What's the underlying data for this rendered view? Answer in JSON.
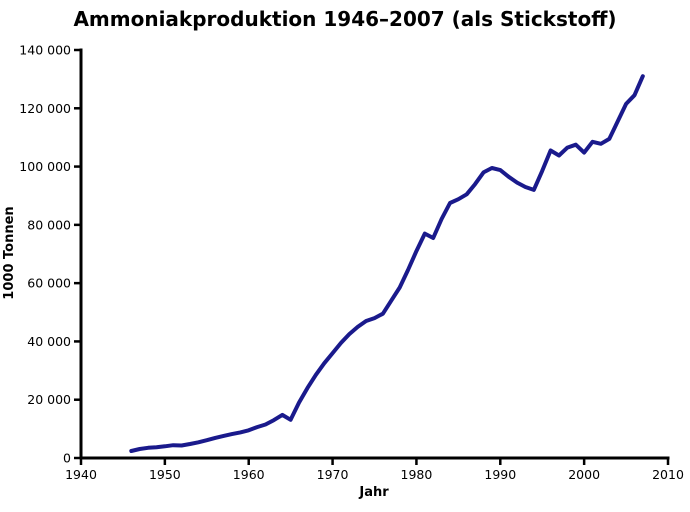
{
  "title": "Ammoniakproduktion 1946–2007 (als Stickstoff)",
  "colors": {
    "line": "#1a1a8c",
    "axis": "#000000",
    "text": "#000000",
    "background": "#ffffff"
  },
  "chart_data": {
    "type": "line",
    "title": "Ammoniakproduktion 1946–2007 (als Stickstoff)",
    "xlabel": "Jahr",
    "ylabel": "1000 Tonnen",
    "xlim": [
      1940,
      2010
    ],
    "ylim": [
      0,
      140000
    ],
    "grid": false,
    "legend": false,
    "x_ticks": [
      1940,
      1950,
      1960,
      1970,
      1980,
      1990,
      2000,
      2010
    ],
    "x_tick_labels": [
      "1940",
      "1950",
      "1960",
      "1970",
      "1980",
      "1990",
      "2000",
      "2010"
    ],
    "y_ticks": [
      0,
      20000,
      40000,
      60000,
      80000,
      100000,
      120000,
      140000
    ],
    "y_tick_labels": [
      "0",
      "20 000",
      "40 000",
      "60 000",
      "80 000",
      "100 000",
      "120 000",
      "140 000"
    ],
    "series": [
      {
        "name": "Ammoniakproduktion 1946–2007 (als Stickstoff)",
        "x": [
          1946,
          1947,
          1948,
          1949,
          1950,
          1951,
          1952,
          1953,
          1954,
          1955,
          1956,
          1957,
          1958,
          1959,
          1960,
          1961,
          1962,
          1963,
          1964,
          1965,
          1966,
          1967,
          1968,
          1969,
          1970,
          1971,
          1972,
          1973,
          1974,
          1975,
          1976,
          1977,
          1978,
          1979,
          1980,
          1981,
          1982,
          1983,
          1984,
          1985,
          1986,
          1987,
          1988,
          1989,
          1990,
          1991,
          1992,
          1993,
          1994,
          1995,
          1996,
          1997,
          1998,
          1999,
          2000,
          2001,
          2002,
          2003,
          2004,
          2005,
          2006,
          2007
        ],
        "y": [
          2400,
          3100,
          3500,
          3700,
          4000,
          4400,
          4300,
          4800,
          5400,
          6100,
          6900,
          7600,
          8200,
          8800,
          9500,
          10600,
          11500,
          13000,
          14800,
          13100,
          19000,
          24000,
          28500,
          32500,
          36000,
          39500,
          42500,
          45000,
          47000,
          48000,
          49500,
          54000,
          58500,
          64500,
          71000,
          77000,
          75500,
          82000,
          87500,
          88800,
          90500,
          94000,
          98000,
          99500,
          98800,
          96500,
          94500,
          93000,
          92000,
          98500,
          105500,
          103800,
          106500,
          107500,
          104800,
          108500,
          107800,
          109500,
          115500,
          121500,
          124500,
          131000
        ]
      }
    ]
  }
}
